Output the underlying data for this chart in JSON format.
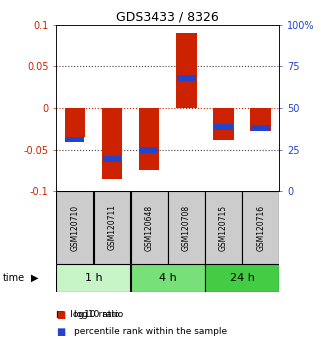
{
  "title": "GDS3433 / 8326",
  "samples": [
    "GSM120710",
    "GSM120711",
    "GSM120648",
    "GSM120708",
    "GSM120715",
    "GSM120716"
  ],
  "groups": [
    {
      "label": "1 h",
      "indices": [
        0,
        1
      ],
      "color": "#c8f5c8"
    },
    {
      "label": "4 h",
      "indices": [
        2,
        3
      ],
      "color": "#78e078"
    },
    {
      "label": "24 h",
      "indices": [
        4,
        5
      ],
      "color": "#44cc44"
    }
  ],
  "log10_ratio": [
    -0.035,
    -0.085,
    -0.075,
    0.09,
    -0.038,
    -0.028
  ],
  "percentile_rank": [
    0.31,
    0.195,
    0.245,
    0.68,
    0.385,
    0.38
  ],
  "bar_color": "#cc2200",
  "blue_color": "#2244cc",
  "ylim": [
    -0.1,
    0.1
  ],
  "yticks": [
    -0.1,
    -0.05,
    0.0,
    0.05,
    0.1
  ],
  "ytick_labels_left": [
    "-0.1",
    "-0.05",
    "0",
    "0.05",
    "0.1"
  ],
  "ytick_labels_right": [
    "0",
    "25",
    "50",
    "75",
    "100%"
  ],
  "sample_box_color": "#cccccc",
  "bg_color": "#ffffff",
  "bar_width": 0.55,
  "blue_bar_width": 0.5,
  "blue_bar_height": 0.007
}
